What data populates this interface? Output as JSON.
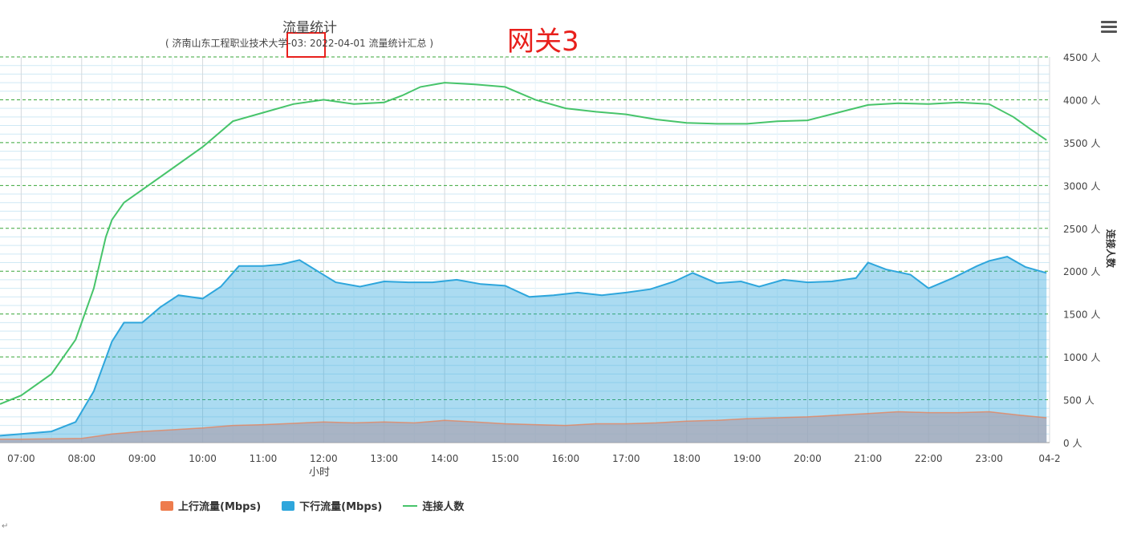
{
  "annotation": "网关3",
  "legend_icon_names": [
    "menu-icon"
  ],
  "corner_mark": "↵",
  "chart_data": {
    "type": "area",
    "title": "流量统计",
    "subtitle": "( 济南山东工程职业技术大学-03: 2022-04-01 流量统计汇总 )",
    "xlabel": "小时",
    "right_axis_label": "连接人数",
    "x_ticks": [
      "07:00",
      "08:00",
      "09:00",
      "10:00",
      "11:00",
      "12:00",
      "13:00",
      "14:00",
      "15:00",
      "16:00",
      "17:00",
      "18:00",
      "19:00",
      "20:00",
      "21:00",
      "22:00",
      "23:00",
      "04-2"
    ],
    "y_right_ticks": [
      "0 人",
      "500 人",
      "1000 人",
      "1500 人",
      "2000 人",
      "2500 人",
      "3000 人",
      "3500 人",
      "4000 人",
      "4500 人"
    ],
    "y_right_range": [
      0,
      4500
    ],
    "x_range": [
      6.65,
      24.0
    ],
    "grid": true,
    "legend_position": "bottom",
    "series": [
      {
        "name": "上行流量(Mbps)",
        "color": "#ee7c4d",
        "kind": "area",
        "x": [
          6.65,
          7.0,
          7.5,
          8.0,
          8.5,
          9.0,
          9.5,
          10.0,
          10.5,
          11.0,
          11.5,
          12.0,
          12.5,
          13.0,
          13.5,
          14.0,
          14.5,
          15.0,
          15.5,
          16.0,
          16.5,
          17.0,
          17.5,
          18.0,
          18.5,
          19.0,
          19.5,
          20.0,
          20.5,
          21.0,
          21.5,
          22.0,
          22.5,
          23.0,
          23.5,
          23.95
        ],
        "y": [
          40,
          40,
          45,
          50,
          100,
          130,
          150,
          170,
          200,
          210,
          225,
          240,
          230,
          240,
          230,
          260,
          240,
          220,
          210,
          200,
          220,
          220,
          230,
          250,
          260,
          280,
          290,
          300,
          320,
          340,
          360,
          350,
          350,
          360,
          320,
          290
        ]
      },
      {
        "name": "下行流量(Mbps)",
        "color": "#2ea6dc",
        "kind": "area",
        "x": [
          6.65,
          7.0,
          7.5,
          7.9,
          8.2,
          8.5,
          8.7,
          9.0,
          9.3,
          9.6,
          10.0,
          10.3,
          10.6,
          11.0,
          11.3,
          11.6,
          11.9,
          12.2,
          12.6,
          13.0,
          13.4,
          13.8,
          14.2,
          14.6,
          15.0,
          15.4,
          15.8,
          16.2,
          16.6,
          17.0,
          17.4,
          17.8,
          18.1,
          18.5,
          18.9,
          19.2,
          19.6,
          20.0,
          20.4,
          20.8,
          21.0,
          21.3,
          21.7,
          22.0,
          22.4,
          22.8,
          23.0,
          23.3,
          23.6,
          23.95
        ],
        "y": [
          80,
          100,
          130,
          240,
          600,
          1180,
          1400,
          1400,
          1580,
          1720,
          1680,
          1820,
          2060,
          2060,
          2080,
          2130,
          2000,
          1870,
          1820,
          1880,
          1870,
          1870,
          1900,
          1850,
          1830,
          1700,
          1720,
          1750,
          1720,
          1750,
          1790,
          1880,
          1980,
          1860,
          1880,
          1820,
          1900,
          1870,
          1880,
          1920,
          2100,
          2020,
          1960,
          1800,
          1920,
          2060,
          2120,
          2170,
          2050,
          1980
        ]
      },
      {
        "name": "连接人数",
        "color": "#47c46a",
        "kind": "line",
        "x": [
          6.65,
          7.0,
          7.5,
          7.9,
          8.2,
          8.4,
          8.5,
          8.7,
          9.0,
          9.5,
          10.0,
          10.5,
          11.0,
          11.5,
          12.0,
          12.5,
          13.0,
          13.3,
          13.6,
          14.0,
          14.5,
          15.0,
          15.5,
          16.0,
          16.5,
          17.0,
          17.5,
          18.0,
          18.5,
          19.0,
          19.5,
          20.0,
          20.5,
          21.0,
          21.5,
          22.0,
          22.5,
          23.0,
          23.4,
          23.7,
          23.95
        ],
        "y": [
          450,
          550,
          800,
          1200,
          1800,
          2400,
          2600,
          2800,
          2950,
          3200,
          3450,
          3750,
          3850,
          3950,
          4000,
          3950,
          3970,
          4050,
          4150,
          4200,
          4180,
          4150,
          4000,
          3900,
          3860,
          3830,
          3770,
          3730,
          3720,
          3720,
          3750,
          3760,
          3850,
          3940,
          3960,
          3950,
          3970,
          3950,
          3800,
          3650,
          3530
        ]
      }
    ]
  }
}
